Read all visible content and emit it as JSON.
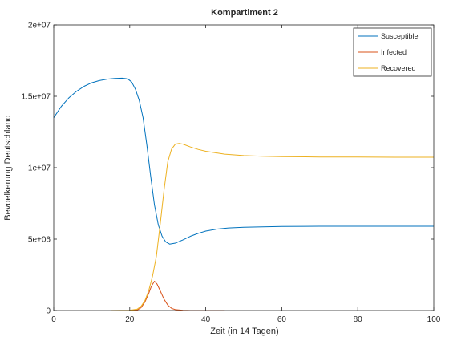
{
  "chart_data": {
    "type": "line",
    "title": "Kompartiment 2",
    "xlabel": "Zeit (in 14 Tagen)",
    "ylabel": "Bevoelkerung Deutschland",
    "xlim": [
      0,
      100
    ],
    "ylim": [
      0,
      20000000
    ],
    "xticks": [
      0,
      20,
      40,
      60,
      80,
      100
    ],
    "xtick_labels": [
      "0",
      "20",
      "40",
      "60",
      "80",
      "100"
    ],
    "yticks": [
      0,
      5000000,
      10000000,
      15000000,
      20000000
    ],
    "ytick_labels": [
      "0",
      "5e+06",
      "1e+07",
      "1.5e+07",
      "2e+07"
    ],
    "grid": false,
    "legend_position": "top-right",
    "series": [
      {
        "name": "Susceptible",
        "color": "#0072bd",
        "points": [
          [
            0,
            13500000
          ],
          [
            2,
            14300000
          ],
          [
            4,
            14900000
          ],
          [
            6,
            15350000
          ],
          [
            8,
            15700000
          ],
          [
            10,
            15950000
          ],
          [
            12,
            16100000
          ],
          [
            14,
            16200000
          ],
          [
            16,
            16250000
          ],
          [
            18,
            16270000
          ],
          [
            19.5,
            16220000
          ],
          [
            20.5,
            16000000
          ],
          [
            21.5,
            15500000
          ],
          [
            22.5,
            14700000
          ],
          [
            23.5,
            13500000
          ],
          [
            24.5,
            11600000
          ],
          [
            25.5,
            9400000
          ],
          [
            26.5,
            7400000
          ],
          [
            27.5,
            6000000
          ],
          [
            28.5,
            5200000
          ],
          [
            29.5,
            4800000
          ],
          [
            30.5,
            4650000
          ],
          [
            32,
            4720000
          ],
          [
            34,
            4950000
          ],
          [
            36,
            5200000
          ],
          [
            38,
            5400000
          ],
          [
            40,
            5560000
          ],
          [
            43,
            5700000
          ],
          [
            46,
            5780000
          ],
          [
            50,
            5830000
          ],
          [
            55,
            5860000
          ],
          [
            60,
            5880000
          ],
          [
            70,
            5900000
          ],
          [
            80,
            5900000
          ],
          [
            90,
            5900000
          ],
          [
            100,
            5900000
          ]
        ]
      },
      {
        "name": "Infected",
        "color": "#d95319",
        "points": [
          [
            15,
            0
          ],
          [
            20,
            3000
          ],
          [
            22,
            40000
          ],
          [
            23,
            200000
          ],
          [
            24,
            600000
          ],
          [
            25,
            1200000
          ],
          [
            25.7,
            1700000
          ],
          [
            26.5,
            2050000
          ],
          [
            27.2,
            1850000
          ],
          [
            28,
            1400000
          ],
          [
            29,
            800000
          ],
          [
            30,
            380000
          ],
          [
            31,
            150000
          ],
          [
            32,
            60000
          ],
          [
            34,
            10000
          ],
          [
            36,
            2000
          ],
          [
            40,
            0
          ],
          [
            45,
            0
          ]
        ]
      },
      {
        "name": "Recovered",
        "color": "#edb120",
        "points": [
          [
            15,
            0
          ],
          [
            20,
            10000
          ],
          [
            22,
            100000
          ],
          [
            23,
            300000
          ],
          [
            24,
            700000
          ],
          [
            25,
            1400000
          ],
          [
            26,
            2400000
          ],
          [
            27,
            3800000
          ],
          [
            28,
            6000000
          ],
          [
            29,
            8400000
          ],
          [
            30,
            10400000
          ],
          [
            31,
            11300000
          ],
          [
            32,
            11650000
          ],
          [
            33,
            11700000
          ],
          [
            34,
            11650000
          ],
          [
            36,
            11450000
          ],
          [
            38,
            11280000
          ],
          [
            40,
            11150000
          ],
          [
            45,
            10950000
          ],
          [
            50,
            10850000
          ],
          [
            55,
            10800000
          ],
          [
            60,
            10770000
          ],
          [
            70,
            10750000
          ],
          [
            80,
            10740000
          ],
          [
            90,
            10730000
          ],
          [
            100,
            10730000
          ]
        ]
      }
    ]
  }
}
